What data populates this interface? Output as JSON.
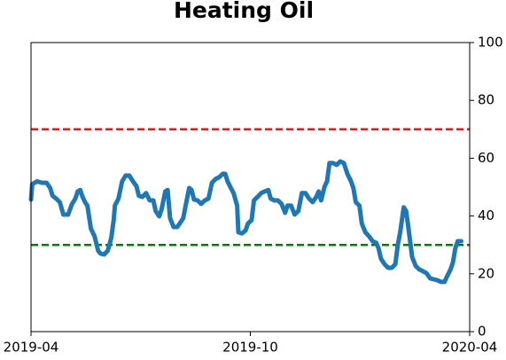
{
  "chart_data": {
    "type": "line",
    "title": "Heating Oil",
    "x": [
      0,
      1,
      5,
      9,
      13,
      16,
      18,
      21,
      24,
      27,
      31,
      34,
      37,
      39,
      41,
      43,
      45,
      47,
      50,
      53,
      56,
      58,
      61,
      64,
      67,
      69,
      70,
      73,
      76,
      79,
      82,
      85,
      88,
      90,
      93,
      96,
      99,
      102,
      104,
      107,
      109,
      112,
      114,
      116,
      119,
      122,
      125,
      127,
      129,
      132,
      134,
      136,
      139,
      142,
      145,
      148,
      151,
      154,
      157,
      160,
      162,
      164,
      166,
      169,
      172,
      173,
      176,
      179,
      181,
      184,
      186,
      189,
      192,
      195,
      198,
      200,
      203,
      206,
      209,
      212,
      214,
      217,
      220,
      223,
      226,
      229,
      232,
      235,
      238,
      240,
      242,
      245,
      247,
      249,
      252,
      255,
      258,
      261,
      264,
      267,
      269,
      271,
      274,
      276,
      279,
      282,
      285,
      288,
      290,
      292,
      295,
      298,
      301,
      304,
      306,
      308,
      311,
      313,
      315,
      318,
      321,
      324,
      327,
      330,
      333,
      336,
      339,
      342,
      345,
      347,
      350,
      352,
      354,
      356,
      359
    ],
    "series": [
      {
        "color": "#1f77b4",
        "values": [
          45.7,
          51,
          52,
          51.5,
          51.5,
          49.7,
          47,
          46,
          44.8,
          40.5,
          40.5,
          44,
          46,
          48.5,
          49,
          46.6,
          44.8,
          43.6,
          35.6,
          33,
          28,
          27,
          26.7,
          28,
          32.5,
          38.6,
          43.6,
          46,
          52,
          54,
          54,
          52,
          50.3,
          47,
          46.6,
          47.9,
          45.4,
          45.4,
          41.7,
          39.9,
          42.3,
          48.5,
          49,
          39.3,
          36.2,
          36.2,
          38,
          39.3,
          43.6,
          49.7,
          49,
          45.7,
          45.4,
          44.2,
          45.4,
          46,
          51.5,
          52.8,
          53.4,
          54.6,
          54.6,
          52,
          50.3,
          47.9,
          43.6,
          34.4,
          34,
          35,
          37.4,
          38.6,
          45.4,
          46.6,
          47.9,
          48.5,
          49,
          46,
          45.4,
          45.4,
          44.2,
          41.1,
          43.6,
          43.6,
          40.5,
          41.7,
          47.9,
          47.9,
          46,
          44.8,
          46.6,
          48.5,
          45.4,
          50.3,
          52,
          58.3,
          58.3,
          57.7,
          58.9,
          58.3,
          54.6,
          52,
          49.7,
          44.8,
          43.6,
          37.4,
          34.4,
          33,
          31.3,
          30.7,
          28.8,
          25.2,
          23.3,
          22.1,
          22.1,
          23.3,
          30,
          34.4,
          43,
          41.7,
          35.6,
          25.8,
          22.7,
          21.5,
          20.9,
          20.2,
          18.4,
          18.1,
          17.8,
          17.2,
          17.2,
          19,
          21.5,
          23.9,
          28.8,
          31.3,
          31.3
        ]
      }
    ],
    "hlines": [
      {
        "value": 70,
        "color": "#e41a1c"
      },
      {
        "value": 30,
        "color": "#008000"
      }
    ],
    "xlim": [
      0,
      366
    ],
    "xticks": [
      {
        "value": 0,
        "label": "2019-04"
      },
      {
        "value": 183,
        "label": "2019-10"
      },
      {
        "value": 366,
        "label": "2020-04"
      }
    ],
    "ylim": [
      0,
      100
    ],
    "yticks": [
      0,
      20,
      40,
      60,
      80,
      100
    ],
    "y_axis_side": "right"
  }
}
